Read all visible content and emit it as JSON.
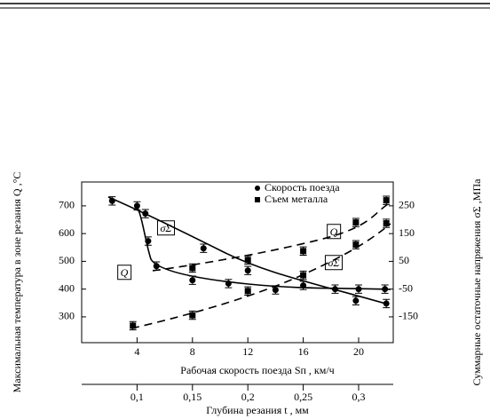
{
  "chart_data": {
    "type": "scatter",
    "ylabel": "Максимальная температура в зоне резания Q ,°C",
    "y2label": "Суммарные остаточные напряжения σΣ ,МПа",
    "xlabel": "Рабочая скорость поезда Sп , км/ч",
    "x2label": "Глубина резания t , мм",
    "xlim": [
      0,
      22.5
    ],
    "xticks": [
      4,
      8,
      12,
      16,
      20
    ],
    "x2lim": [
      0.05,
      0.33125
    ],
    "x2ticks": [
      {
        "value": 0.1,
        "label": "0,1"
      },
      {
        "value": 0.15,
        "label": "0,15"
      },
      {
        "value": 0.2,
        "label": "0,2"
      },
      {
        "value": 0.25,
        "label": "0,25"
      },
      {
        "value": 0.3,
        "label": "0,3"
      }
    ],
    "ylim": [
      207,
      786
    ],
    "yticks": [
      300,
      400,
      500,
      600,
      700
    ],
    "y2lim": [
      -243,
      336
    ],
    "y2ticks": [
      -150,
      -50,
      50,
      150,
      250
    ],
    "series": [
      {
        "name": "Скорость поезда",
        "marker": "circle",
        "color": "#000",
        "x": [
          2.2,
          4,
          4.6,
          4.8,
          5.4,
          8,
          8.8,
          10.6,
          12,
          14,
          16,
          18.3,
          19.8,
          20,
          21.9,
          22
        ],
        "values": [
          718,
          700,
          672,
          573,
          483,
          432,
          547,
          420,
          467,
          397,
          413,
          400,
          358,
          400,
          400,
          348
        ],
        "errors": [
          15,
          15,
          15,
          15,
          15,
          15,
          15,
          15,
          15,
          15,
          15,
          15,
          15,
          15,
          15,
          15
        ]
      },
      {
        "name": "Съем металла",
        "marker": "square",
        "color": "#000",
        "axis": "y2",
        "x": [
          3.7,
          8,
          8,
          12,
          12,
          16,
          16,
          19.8,
          19.8,
          22,
          22
        ],
        "values": [
          -182,
          -144,
          26,
          55,
          -57,
          87,
          0,
          190,
          110,
          270,
          187
        ],
        "errors": [
          15,
          15,
          15,
          15,
          15,
          15,
          15,
          15,
          15,
          15,
          15
        ]
      }
    ],
    "annotations": [
      "σΣ",
      "Q",
      "Q",
      "σΣ"
    ]
  }
}
